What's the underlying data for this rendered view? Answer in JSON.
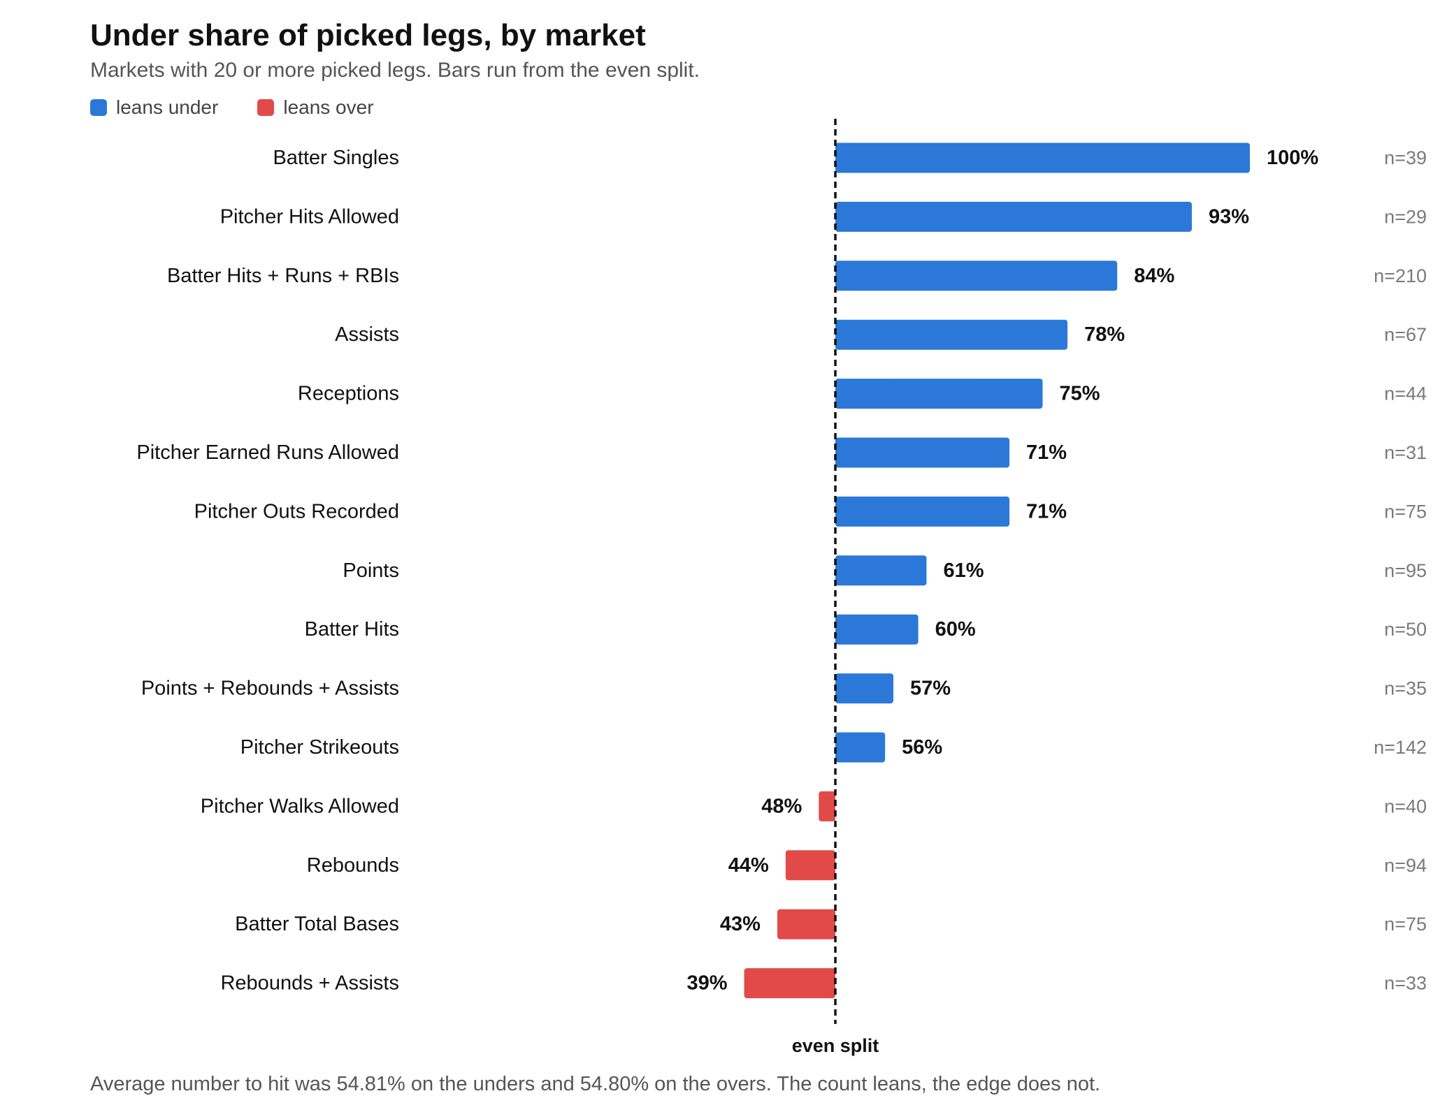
{
  "title": "Under share of picked legs, by market",
  "subtitle": "Markets with 20 or more picked legs. Bars run from the even split.",
  "legend": {
    "under_label": "leans under",
    "over_label": "leans over"
  },
  "colors": {
    "under": "#2b78d8",
    "over": "#e24a4a",
    "reference_line": "#111111",
    "n_label": "#7a7a7a"
  },
  "chart_data": {
    "type": "bar",
    "orientation": "horizontal",
    "baseline": 50,
    "baseline_label": "even split",
    "value_unit": "%",
    "categories": [
      "Batter Singles",
      "Pitcher Hits Allowed",
      "Batter Hits + Runs + RBIs",
      "Assists",
      "Receptions",
      "Pitcher Earned Runs Allowed",
      "Pitcher Outs Recorded",
      "Points",
      "Batter Hits",
      "Points + Rebounds + Assists",
      "Pitcher Strikeouts",
      "Pitcher Walks Allowed",
      "Rebounds",
      "Batter Total Bases",
      "Rebounds + Assists"
    ],
    "values": [
      100,
      93,
      84,
      78,
      75,
      71,
      71,
      61,
      60,
      57,
      56,
      48,
      44,
      43,
      39
    ],
    "value_labels": [
      "100%",
      "93%",
      "84%",
      "78%",
      "75%",
      "71%",
      "71%",
      "61%",
      "60%",
      "57%",
      "56%",
      "48%",
      "44%",
      "43%",
      "39%"
    ],
    "n_labels": [
      "n=39",
      "n=29",
      "n=210",
      "n=67",
      "n=44",
      "n=31",
      "n=75",
      "n=95",
      "n=50",
      "n=35",
      "n=142",
      "n=40",
      "n=94",
      "n=75",
      "n=33"
    ],
    "xlim": [
      33,
      100
    ],
    "grid": false,
    "legend_position": "top-left"
  },
  "footnote": "Average number to hit was 54.81% on the unders and 54.80% on the overs. The count leans, the edge does not."
}
